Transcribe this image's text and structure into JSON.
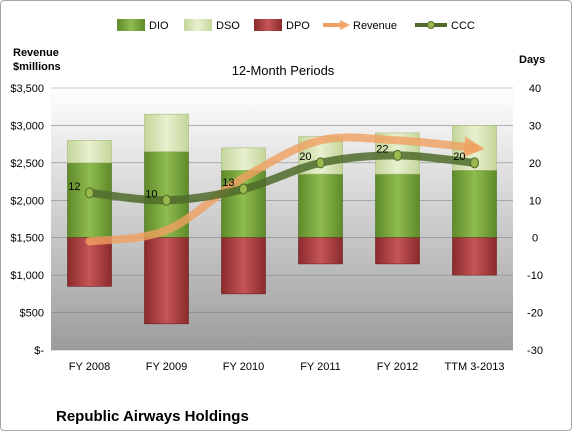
{
  "chart_data": {
    "type": "bar",
    "subtitle": "12-Month Periods",
    "company": "Republic Airways Holdings",
    "left_axis_title_line1": "Revenue",
    "left_axis_title_line2": "$millions",
    "right_axis_title": "Days",
    "categories": [
      "FY 2008",
      "FY 2009",
      "FY 2010",
      "FY 2011",
      "FY 2012",
      "TTM 3-2013"
    ],
    "left_ticks": [
      "$3,500",
      "$3,000",
      "$2,500",
      "$2,000",
      "$1,500",
      "$1,000",
      "$500",
      "$-"
    ],
    "right_ticks": [
      "40",
      "30",
      "20",
      "10",
      "0",
      "-10",
      "-20",
      "-30"
    ],
    "ylim_left": [
      0,
      3500
    ],
    "ylim_right": [
      -30,
      40
    ],
    "legend": [
      "DIO",
      "DSO",
      "DPO",
      "Revenue",
      "CCC"
    ],
    "series": [
      {
        "name": "DIO",
        "axis": "right",
        "values": [
          20,
          23,
          18,
          17,
          17,
          18
        ],
        "color": "#77a33a"
      },
      {
        "name": "DSO",
        "axis": "right",
        "values": [
          6,
          10,
          6,
          10,
          11,
          12
        ],
        "color": "#d7e4b2"
      },
      {
        "name": "DPO",
        "axis": "right",
        "values": [
          -13,
          -23,
          -15,
          -7,
          -7,
          -10
        ],
        "color": "#a8383a"
      },
      {
        "name": "Revenue",
        "axis": "left",
        "values": [
          1450,
          1600,
          2300,
          2800,
          2800,
          2700
        ],
        "color": "#f0a060"
      },
      {
        "name": "CCC",
        "axis": "right",
        "values": [
          12,
          10,
          13,
          20,
          22,
          20
        ],
        "color": "#4f6b2c"
      }
    ]
  }
}
